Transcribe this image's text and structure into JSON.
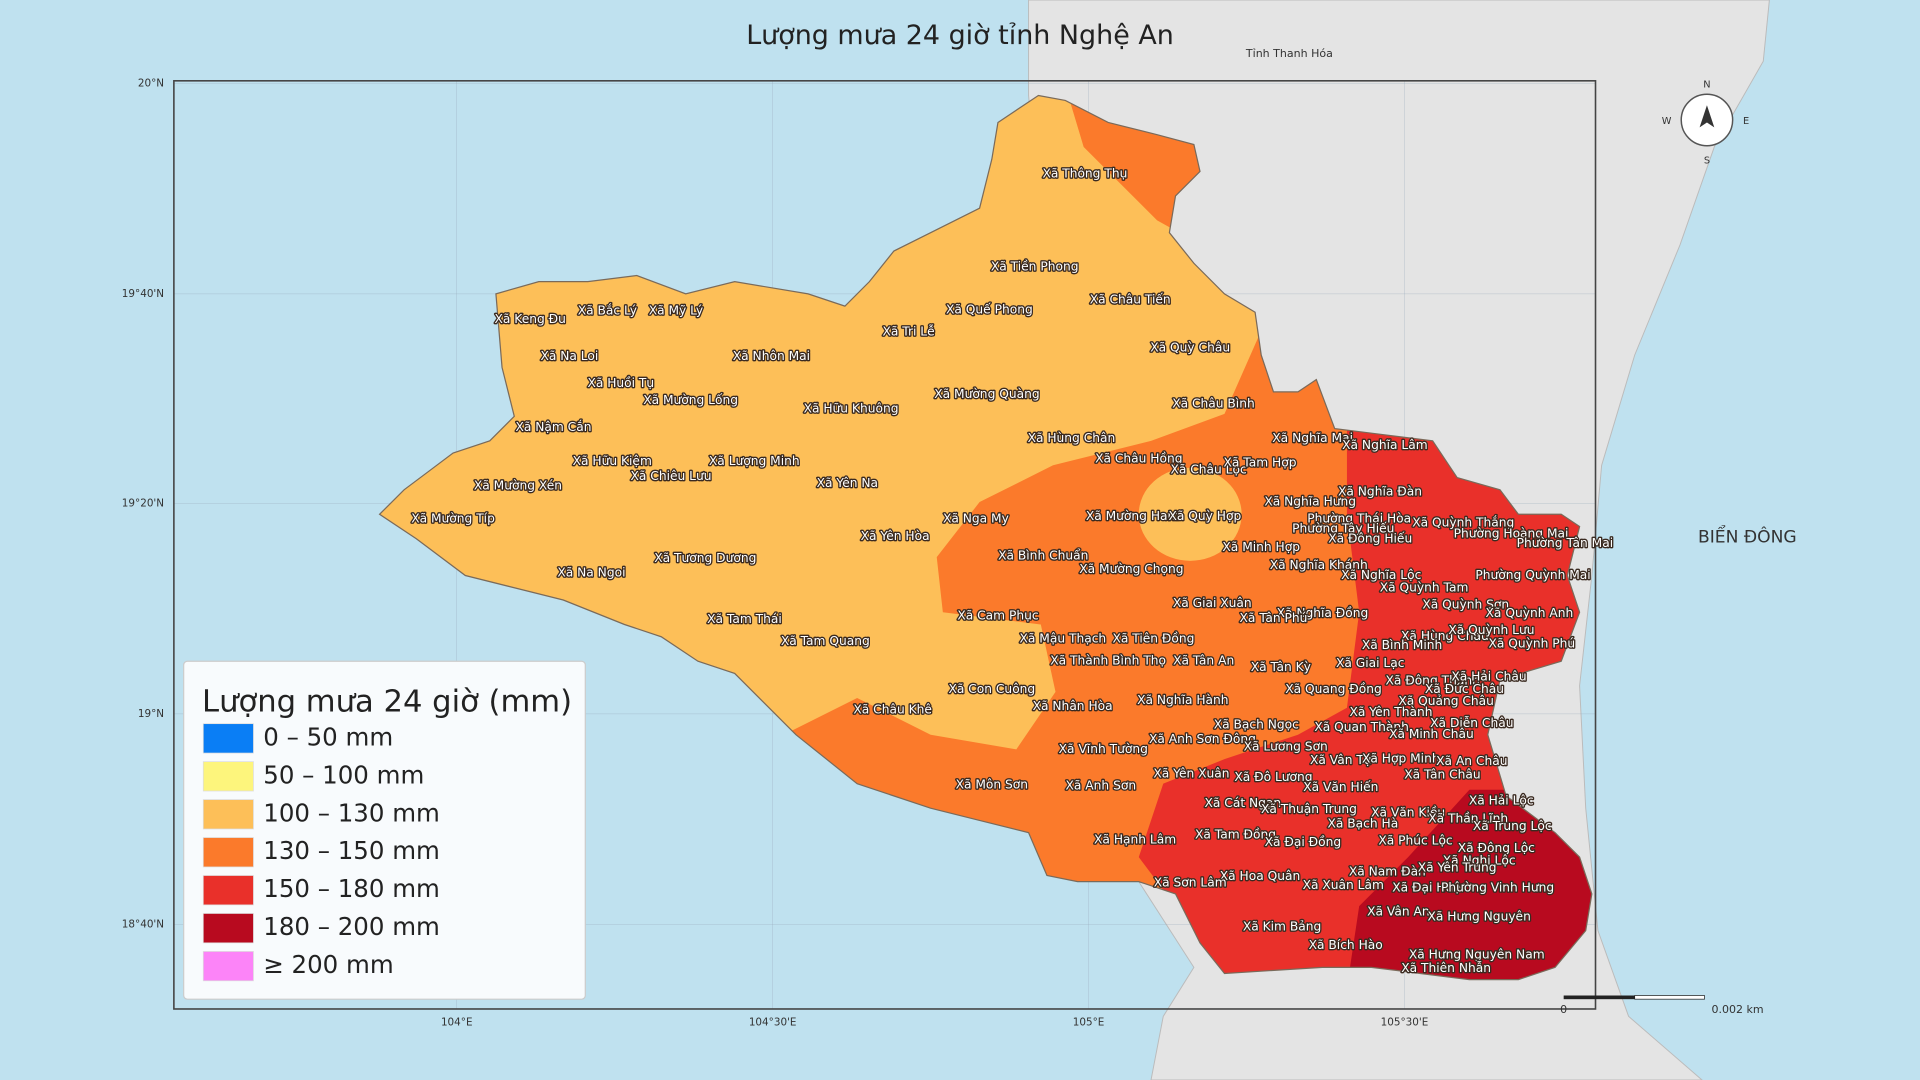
{
  "header": {
    "title": "Lượng mưa 24 giờ tỉnh Nghệ An"
  },
  "legend": {
    "title": "Lượng mưa 24 giờ (mm)",
    "items": [
      {
        "label": "0 – 50 mm",
        "color": "#0a7ef5"
      },
      {
        "label": "50 – 100 mm",
        "color": "#fdf57c"
      },
      {
        "label": "100 – 130 mm",
        "color": "#fdbf58"
      },
      {
        "label": "130 – 150 mm",
        "color": "#fb7a2b"
      },
      {
        "label": "150 – 180 mm",
        "color": "#e9302a"
      },
      {
        "label": "180 – 200 mm",
        "color": "#b80a1f"
      },
      {
        "label": "≥ 200 mm",
        "color": "#fc84f8"
      }
    ]
  },
  "graticule": {
    "lat": [
      "20°N",
      "19°40'N",
      "19°20'N",
      "19°N",
      "18°40'N"
    ],
    "lon": [
      "104°E",
      "104°30'E",
      "105°E",
      "105°30'E"
    ]
  },
  "places": {
    "neighbor": "Tỉnh Thanh Hóa",
    "sea": "BIỂN ĐÔNG",
    "communes": [
      "Xã Thông Thụ",
      "Xã Tiền Phong",
      "Xã Châu Tiến",
      "Xã Quế Phong",
      "Xã Tri Lễ",
      "Xã Quỳ Châu",
      "Xã Mường Quàng",
      "Xã Châu Bình",
      "Xã Keng Đu",
      "Xã Bắc Lý",
      "Xã Mỹ Lý",
      "Xã Na Loi",
      "Xã Nhôn Mai",
      "Xã Huồi Tụ",
      "Xã Mường Lống",
      "Xã Hữu Khuông",
      "Xã Nậm Cắn",
      "Xã Hữu Kiệm",
      "Xã Lượng Minh",
      "Xã Chiêu Lưu",
      "Xã Mường Xén",
      "Xã Yên Na",
      "Xã Mường Típ",
      "Xã Yên Hòa",
      "Xã Tương Dương",
      "Xã Na Ngoi",
      "Xã Tam Thái",
      "Xã Tam Quang",
      "Xã Hùng Chân",
      "Xã Châu Hồng",
      "Xã Châu Lộc",
      "Xã Tam Hợp",
      "Xã Nghĩa Mai",
      "Xã Nghĩa Lâm",
      "Xã Nga My",
      "Xã Mường Ham",
      "Xã Quỳ Hợp",
      "Xã Bình Chuẩn",
      "Xã Mường Chọng",
      "Xã Minh Hợp",
      "Xã Nghĩa Hưng",
      "Xã Nghĩa Đàn",
      "Phường Thái Hòa",
      "Phường Tây Hiếu",
      "Xã Đông Hiếu",
      "Xã Quỳnh Thắng",
      "Phường Hoàng Mai",
      "Phường Tân Mai",
      "Xã Nghĩa Khánh",
      "Xã Nghĩa Lộc",
      "Phường Quỳnh Mai",
      "Xã Quỳnh Tam",
      "Xã Giai Xuân",
      "Xã Quỳnh Sơn",
      "Xã Nghĩa Đồng",
      "Xã Quỳnh Anh",
      "Xã Tân Phú",
      "Xã Cam Phục",
      "Xã Mậu Thạch",
      "Xã Tiên Đồng",
      "Xã Hùng Châu",
      "Xã Quỳnh Lưu",
      "Xã Bình Minh",
      "Xã Quỳnh Phú",
      "Xã Thành Bình Thọ",
      "Xã Tân An",
      "Xã Tân Kỳ",
      "Xã Giai Lạc",
      "Xã Đông Thành",
      "Xã Hải Châu",
      "Xã Con Cuông",
      "Xã Quang Đồng",
      "Xã Đức Châu",
      "Xã Nhân Hòa",
      "Xã Nghĩa Hành",
      "Xã Quảng Châu",
      "Xã Yên Thành",
      "Xã Châu Khê",
      "Xã Bạch Ngọc",
      "Xã Quan Thành",
      "Xã Diễn Châu",
      "Xã Minh Châu",
      "Xã Anh Sơn Đông",
      "Xã Lương Sơn",
      "Xã Vĩnh Tường",
      "Xã Vân Tụ",
      "Xã Hợp Minh",
      "Xã An Châu",
      "Xã Yên Xuân",
      "Xã Đô Lương",
      "Xã Tân Châu",
      "Xã Môn Sơn",
      "Xã Anh Sơn",
      "Xã Văn Hiến",
      "Xã Cát Ngạn",
      "Xã Hải Lộc",
      "Xã Thuận Trung",
      "Xã Văn Kiều",
      "Xã Thần Lĩnh",
      "Xã Bạch Hà",
      "Xã Trung Lộc",
      "Xã Tam Đồng",
      "Xã Đại Đồng",
      "Xã Phúc Lộc",
      "Xã Hạnh Lâm",
      "Xã Đông Lộc",
      "Xã Nghi Lộc",
      "Xã Nam Đàn",
      "Xã Yên Trung",
      "Xã Hoa Quân",
      "Xã Sơn Lâm",
      "Xã Xuân Lâm",
      "Xã Đại Huệ",
      "Phường Vinh Hưng",
      "Xã Vân An",
      "Xã Hưng Nguyên",
      "Xã Kim Bảng",
      "Xã Bích Hào",
      "Xã Hưng Nguyên Nam",
      "Xã Thiên Nhẫn"
    ]
  },
  "compass": {
    "n": "N",
    "s": "S",
    "e": "E",
    "w": "W"
  },
  "scale_bar": {
    "start": "0",
    "end": "0.002 km"
  }
}
